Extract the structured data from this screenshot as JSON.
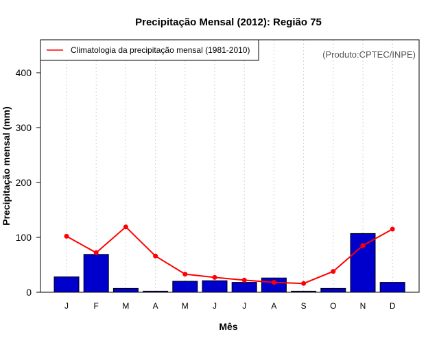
{
  "chart_data": {
    "type": "bar",
    "title": "Precipitação Mensal (2012): Região 75",
    "xlabel": "Mês",
    "ylabel": "Precipitação mensal (mm)",
    "ylim": [
      0,
      460
    ],
    "yticks": [
      0,
      100,
      200,
      300,
      400
    ],
    "categories": [
      "J",
      "F",
      "M",
      "A",
      "M",
      "J",
      "J",
      "A",
      "S",
      "O",
      "N",
      "D"
    ],
    "series": [
      {
        "name": "Precipitação mensal (2012)",
        "type": "bar",
        "color": "#0000cd",
        "values": [
          28,
          69,
          7,
          2,
          20,
          21,
          18,
          26,
          2,
          7,
          107,
          18
        ]
      },
      {
        "name": "Climatologia da precipitação mensal (1981-2010)",
        "type": "line",
        "color": "#ff0000",
        "values": [
          102,
          72,
          119,
          66,
          33,
          27,
          22,
          18,
          16,
          38,
          85,
          115
        ]
      }
    ],
    "legend": {
      "label": "Climatologia da precipitação mensal (1981-2010)",
      "placement": "top-left"
    },
    "grid": "vertical dotted",
    "credit": "(Produto:CPTEC/INPE)"
  }
}
